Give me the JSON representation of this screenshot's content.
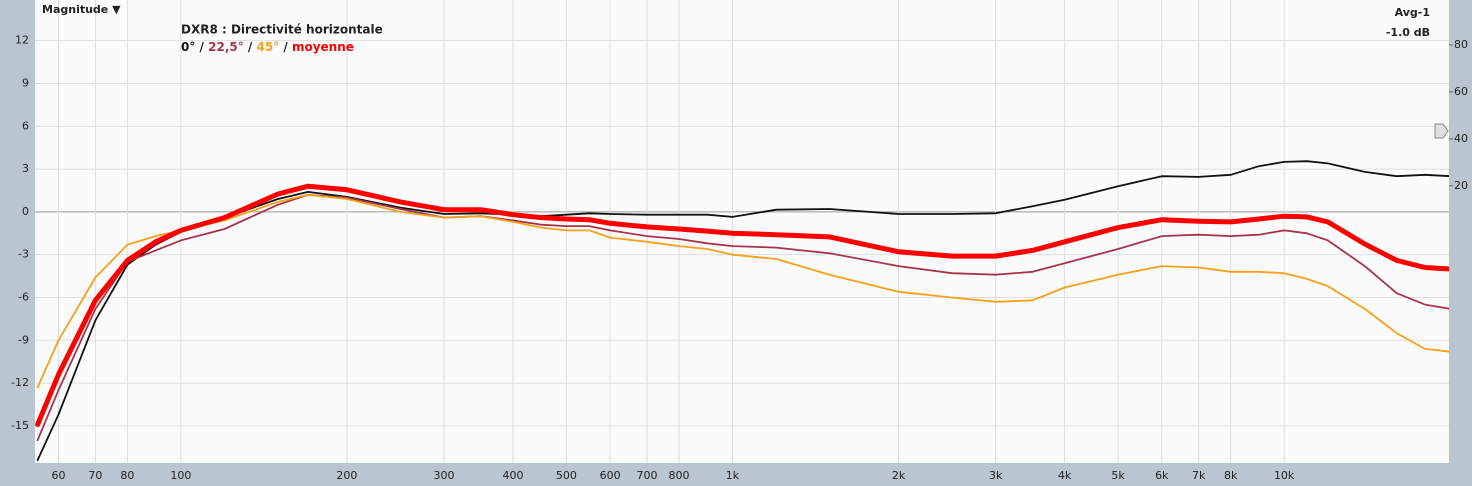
{
  "chart_data": {
    "type": "line",
    "panel_label": "Magnitude ▼",
    "title": "DXR8 : Directivité horizontale",
    "legend_separator": "/",
    "corner_labels": [
      "Avg-1",
      "-1.0 dB"
    ],
    "log_x": true,
    "grid": true,
    "xlim": [
      54.4,
      19900
    ],
    "ylim": [
      -17.6,
      14.85
    ],
    "y2lim": [
      -97.9,
      99.1
    ],
    "xticks": [
      60,
      70,
      80,
      100,
      200,
      300,
      400,
      500,
      600,
      700,
      800,
      {
        "value": 1000,
        "label": "1k"
      },
      {
        "value": 2000,
        "label": "2k"
      },
      {
        "value": 3000,
        "label": "3k"
      },
      {
        "value": 4000,
        "label": "4k"
      },
      {
        "value": 5000,
        "label": "5k"
      },
      {
        "value": 6000,
        "label": "6k"
      },
      {
        "value": 7000,
        "label": "7k"
      },
      {
        "value": 8000,
        "label": "8k"
      },
      {
        "value": 10000,
        "label": "10k"
      }
    ],
    "yticks": [
      -15,
      -12,
      -9,
      -6,
      -3,
      0,
      3,
      6,
      9,
      12
    ],
    "y2ticks": [
      20,
      40,
      60,
      80
    ],
    "x": [
      55,
      60,
      70,
      80,
      90,
      100,
      120,
      150,
      170,
      200,
      250,
      300,
      350,
      400,
      450,
      500,
      550,
      600,
      700,
      800,
      900,
      1000,
      1200,
      1500,
      2000,
      2500,
      3000,
      3500,
      4000,
      5000,
      6000,
      7000,
      8000,
      9000,
      10000,
      11000,
      12000,
      14000,
      16000,
      18000,
      20000
    ],
    "series": [
      {
        "name": "0°",
        "color": "#111111",
        "width": 1.8,
        "values": [
          -17.4,
          -14.2,
          -7.6,
          -3.7,
          -2.3,
          -1.4,
          -0.4,
          0.9,
          1.4,
          1.05,
          0.3,
          -0.15,
          -0.1,
          -0.2,
          -0.3,
          -0.2,
          -0.1,
          -0.15,
          -0.2,
          -0.2,
          -0.2,
          -0.35,
          0.15,
          0.2,
          -0.15,
          -0.15,
          -0.1,
          0.4,
          0.85,
          1.8,
          2.5,
          2.45,
          2.6,
          3.2,
          3.5,
          3.55,
          3.4,
          2.8,
          2.5,
          2.6,
          2.5
        ]
      },
      {
        "name": "22,5°",
        "color": "#a6354a",
        "width": 1.8,
        "values": [
          -16,
          -12.5,
          -6.8,
          -3.5,
          -2.7,
          -2.0,
          -1.2,
          0.5,
          1.2,
          1.0,
          0.2,
          -0.4,
          -0.3,
          -0.6,
          -0.9,
          -1.0,
          -1.0,
          -1.3,
          -1.7,
          -1.9,
          -2.2,
          -2.4,
          -2.5,
          -2.9,
          -3.8,
          -4.3,
          -4.4,
          -4.2,
          -3.6,
          -2.6,
          -1.7,
          -1.6,
          -1.7,
          -1.6,
          -1.3,
          -1.5,
          -2.0,
          -3.8,
          -5.7,
          -6.5,
          -6.8
        ]
      },
      {
        "name": "45°",
        "color": "#f5a11c",
        "width": 1.8,
        "values": [
          -12.3,
          -9.0,
          -4.6,
          -2.3,
          -1.7,
          -1.3,
          -0.6,
          0.7,
          1.2,
          0.9,
          0,
          -0.4,
          -0.3,
          -0.7,
          -1.1,
          -1.3,
          -1.3,
          -1.8,
          -2.1,
          -2.4,
          -2.6,
          -3.0,
          -3.3,
          -4.4,
          -5.6,
          -6.0,
          -6.3,
          -6.2,
          -5.3,
          -4.4,
          -3.8,
          -3.9,
          -4.2,
          -4.2,
          -4.3,
          -4.7,
          -5.2,
          -6.8,
          -8.5,
          -9.6,
          -9.8
        ]
      },
      {
        "name": "moyenne",
        "color": "#ff0000",
        "width": 5,
        "values": [
          -14.9,
          -11.4,
          -6.2,
          -3.4,
          -2.1,
          -1.3,
          -0.4,
          1.25,
          1.8,
          1.55,
          0.7,
          0.15,
          0.15,
          -0.2,
          -0.4,
          -0.5,
          -0.55,
          -0.8,
          -1.05,
          -1.2,
          -1.35,
          -1.5,
          -1.6,
          -1.75,
          -2.8,
          -3.1,
          -3.1,
          -2.7,
          -2.1,
          -1.1,
          -0.55,
          -0.65,
          -0.7,
          -0.5,
          -0.3,
          -0.35,
          -0.7,
          -2.25,
          -3.4,
          -3.9,
          -4.0
        ]
      }
    ]
  }
}
